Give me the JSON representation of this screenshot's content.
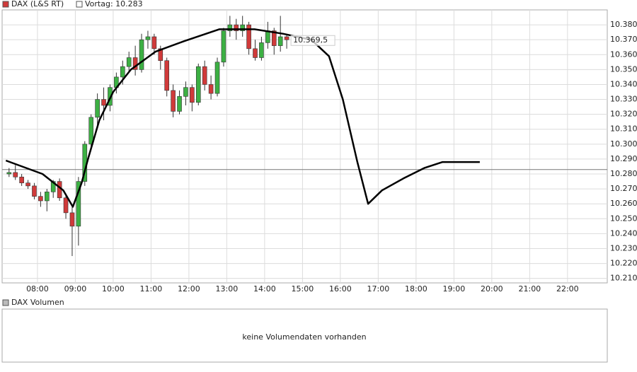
{
  "chart_data": {
    "type": "candlestick",
    "title": "DAX (L&S RT)",
    "reference_label": "Vortag: 10.283",
    "reference_value": 10283,
    "last_label": "10.369,5",
    "last_value": 10369.5,
    "up_color": "#3cb043",
    "down_color": "#d03a3a",
    "line_color": "#000000",
    "grid": true,
    "xlim": [
      424,
      1383
    ],
    "ylim": [
      10207,
      10390
    ],
    "xticks": [
      {
        "value": 480,
        "label": "08:00"
      },
      {
        "value": 540,
        "label": "09:00"
      },
      {
        "value": 600,
        "label": "10:00"
      },
      {
        "value": 660,
        "label": "11:00"
      },
      {
        "value": 720,
        "label": "12:00"
      },
      {
        "value": 780,
        "label": "13:00"
      },
      {
        "value": 840,
        "label": "14:00"
      },
      {
        "value": 900,
        "label": "15:00"
      },
      {
        "value": 960,
        "label": "16:00"
      },
      {
        "value": 1020,
        "label": "17:00"
      },
      {
        "value": 1080,
        "label": "18:00"
      },
      {
        "value": 1140,
        "label": "19:00"
      },
      {
        "value": 1200,
        "label": "20:00"
      },
      {
        "value": 1260,
        "label": "21:00"
      },
      {
        "value": 1320,
        "label": "22:00"
      }
    ],
    "yticks": [
      {
        "value": 10210,
        "label": "10.210"
      },
      {
        "value": 10220,
        "label": "10.220"
      },
      {
        "value": 10230,
        "label": "10.230"
      },
      {
        "value": 10240,
        "label": "10.240"
      },
      {
        "value": 10250,
        "label": "10.250"
      },
      {
        "value": 10260,
        "label": "10.260"
      },
      {
        "value": 10270,
        "label": "10.270"
      },
      {
        "value": 10280,
        "label": "10.280"
      },
      {
        "value": 10290,
        "label": "10.290"
      },
      {
        "value": 10300,
        "label": "10.300"
      },
      {
        "value": 10310,
        "label": "10.310"
      },
      {
        "value": 10320,
        "label": "10.320"
      },
      {
        "value": 10330,
        "label": "10.330"
      },
      {
        "value": 10340,
        "label": "10.340"
      },
      {
        "value": 10350,
        "label": "10.350"
      },
      {
        "value": 10360,
        "label": "10.360"
      },
      {
        "value": 10370,
        "label": "10.370"
      },
      {
        "value": 10380,
        "label": "10.380"
      }
    ],
    "candles": {
      "x": [
        435,
        445,
        455,
        465,
        475,
        485,
        495,
        505,
        515,
        525,
        535,
        545,
        555,
        565,
        575,
        585,
        595,
        605,
        615,
        625,
        635,
        645,
        655,
        665,
        675,
        685,
        695,
        705,
        715,
        725,
        735,
        745,
        755,
        765,
        775,
        785,
        795,
        805,
        815,
        825,
        835,
        845,
        855,
        865,
        875
      ],
      "open": [
        10280,
        10281,
        10278,
        10274,
        10272,
        10265,
        10262,
        10268,
        10275,
        10264,
        10254,
        10245,
        10275,
        10300,
        10318,
        10330,
        10326,
        10338,
        10345,
        10352,
        10358,
        10350,
        10370,
        10372,
        10364,
        10356,
        10336,
        10322,
        10332,
        10338,
        10328,
        10352,
        10340,
        10334,
        10355,
        10376,
        10380,
        10376,
        10380,
        10364,
        10358,
        10368,
        10376,
        10366,
        10372
      ],
      "high": [
        10284,
        10286,
        10280,
        10276,
        10274,
        10268,
        10270,
        10276,
        10277,
        10266,
        10258,
        10278,
        10302,
        10320,
        10334,
        10338,
        10340,
        10348,
        10356,
        10362,
        10366,
        10374,
        10376,
        10374,
        10366,
        10358,
        10340,
        10336,
        10342,
        10340,
        10354,
        10356,
        10346,
        10358,
        10378,
        10386,
        10384,
        10386,
        10382,
        10370,
        10372,
        10382,
        10378,
        10386,
        10374
      ],
      "low": [
        10278,
        10276,
        10272,
        10270,
        10263,
        10258,
        10255,
        10264,
        10262,
        10250,
        10225,
        10232,
        10272,
        10296,
        10312,
        10316,
        10322,
        10334,
        10340,
        10348,
        10346,
        10348,
        10364,
        10360,
        10350,
        10332,
        10318,
        10320,
        10326,
        10322,
        10326,
        10336,
        10330,
        10332,
        10352,
        10372,
        10370,
        10372,
        10360,
        10356,
        10356,
        10364,
        10360,
        10362,
        10364
      ],
      "close": [
        10281,
        10278,
        10274,
        10272,
        10265,
        10262,
        10268,
        10275,
        10264,
        10254,
        10245,
        10275,
        10300,
        10318,
        10330,
        10326,
        10338,
        10345,
        10352,
        10358,
        10350,
        10370,
        10372,
        10364,
        10356,
        10336,
        10322,
        10332,
        10338,
        10328,
        10352,
        10340,
        10334,
        10355,
        10376,
        10380,
        10376,
        10380,
        10364,
        10358,
        10368,
        10376,
        10366,
        10372,
        10370
      ]
    },
    "line": {
      "x": [
        430,
        488,
        521,
        536,
        550,
        560,
        578,
        600,
        628,
        667,
        712,
        768,
        824,
        869,
        914,
        942,
        964,
        987,
        1004,
        1026,
        1060,
        1093,
        1122,
        1181
      ],
      "values": [
        10289,
        10280,
        10269,
        10258,
        10274,
        10290,
        10316,
        10335,
        10350,
        10362,
        10369,
        10377,
        10377,
        10374,
        10370,
        10359,
        10330,
        10288,
        10260,
        10269,
        10277,
        10284,
        10288,
        10288
      ]
    },
    "volume_title": "DAX Volumen",
    "volume_message": "keine Volumendaten vorhanden"
  }
}
